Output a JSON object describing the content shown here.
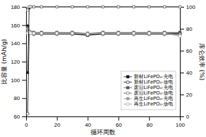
{
  "chart_data": {
    "type": "line",
    "xlabel": "循环周数",
    "ylabel": "比容量 (mAh/g)",
    "y2label": "库仑效率 (%)",
    "x": [
      1,
      2,
      3,
      5,
      10,
      20,
      30,
      40,
      50,
      60,
      70,
      80,
      90,
      100
    ],
    "xlim": [
      0,
      100
    ],
    "xticks": [
      0,
      20,
      40,
      60,
      80,
      100
    ],
    "ylim": [
      60,
      180
    ],
    "yticks": [
      60,
      80,
      100,
      120,
      140,
      160,
      180
    ],
    "y2lim": [
      0,
      100
    ],
    "y2ticks": [
      0,
      20,
      40,
      60,
      80,
      100
    ],
    "grid": false,
    "legend": "right",
    "series": [
      {
        "name": "新材LiFePO₄-充电",
        "color": "#111111",
        "marker": "square",
        "values": [
          159,
          153,
          152,
          151,
          151,
          151,
          151,
          149,
          151,
          151,
          151,
          151,
          151,
          151
        ]
      },
      {
        "name": "新材LiFePO₄-放电",
        "color": "#111111",
        "marker": "circle-open",
        "values": [
          63,
          152,
          151,
          150,
          150,
          150,
          150,
          149,
          150,
          150,
          150,
          150,
          150,
          150
        ]
      },
      {
        "name": "废旧LiFePO₄-充电",
        "color": "#555555",
        "marker": "square",
        "values": [
          157,
          153,
          152,
          152,
          152,
          152,
          152,
          151,
          152,
          152,
          152,
          152,
          152,
          152
        ]
      },
      {
        "name": "废旧LiFePO₄-放电",
        "color": "#555555",
        "marker": "circle-open",
        "values": [
          152,
          152,
          151,
          151,
          151,
          151,
          151,
          150,
          151,
          151,
          151,
          151,
          151,
          150
        ]
      },
      {
        "name": "再生LiFePO₄-充电",
        "color": "#999999",
        "marker": "square",
        "values": [
          156,
          153,
          152,
          151,
          151,
          151,
          151,
          151,
          151,
          151,
          151,
          151,
          151,
          149
        ]
      },
      {
        "name": "再生LiFePO₄-放电",
        "color": "#999999",
        "marker": "circle-open",
        "values": [
          151,
          152,
          151,
          151,
          151,
          151,
          151,
          150,
          151,
          151,
          151,
          151,
          151,
          148
        ]
      },
      {
        "axis": "y2",
        "color": "#111111",
        "marker": "square",
        "values": [
          40,
          99,
          100,
          100,
          100,
          100,
          100,
          100,
          100,
          100,
          100,
          100,
          100,
          100
        ]
      },
      {
        "axis": "y2",
        "color": "#444444",
        "marker": "circle-open",
        "values": [
          97,
          100,
          100,
          100,
          100,
          100,
          100,
          100,
          100,
          100,
          100,
          100,
          100,
          100
        ]
      },
      {
        "axis": "y2",
        "color": "#777777",
        "marker": "square-open",
        "values": [
          97,
          100,
          100,
          100,
          100,
          100,
          100,
          100,
          100,
          100,
          100,
          100,
          100,
          100
        ]
      }
    ]
  }
}
